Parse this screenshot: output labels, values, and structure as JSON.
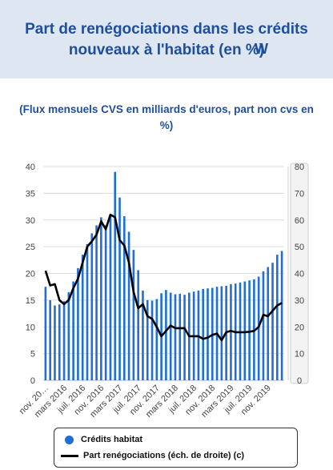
{
  "header": {
    "title": "Part de renégociations dans les crédits nouveaux à l'habitat (en %)",
    "title_mark": "W"
  },
  "chart_data": {
    "type": "bar",
    "title": "Part de renégociations dans les crédits nouveaux à l'habitat (en %)",
    "subtitle": "(Flux mensuels CVS en milliards d'euros, part non cvs en %)",
    "x_tick_labels": [
      "nov. 20…",
      "mars 2016",
      "juil. 2016",
      "nov. 2016",
      "mars 2017",
      "juil. 2017",
      "nov. 2017",
      "mars 2018",
      "juil. 2018",
      "nov. 2018",
      "mars 2019",
      "juil. 2019",
      "nov. 2019"
    ],
    "y_left": {
      "lim": [
        0,
        40
      ],
      "ticks": [
        0,
        5,
        10,
        15,
        20,
        25,
        30,
        35,
        40
      ]
    },
    "y_right": {
      "lim": [
        0,
        80
      ],
      "ticks": [
        0,
        10,
        20,
        30,
        40,
        50,
        60,
        70,
        80
      ]
    },
    "grid": true,
    "legend_position": "bottom",
    "colors": {
      "bars": "#1f6fd6",
      "line": "#000000",
      "title": "#1f4e9c",
      "header_bg": "#dde6f1"
    },
    "series": [
      {
        "name": "Crédits habitat",
        "type": "bar",
        "axis": "left",
        "values": [
          17.5,
          15.0,
          14.0,
          14.2,
          14.8,
          16.5,
          18.5,
          21.0,
          23.5,
          25.5,
          27.5,
          29.0,
          30.5,
          29.0,
          31.0,
          39.0,
          34.2,
          30.7,
          27.8,
          24.4,
          20.6,
          16.8,
          15.0,
          14.9,
          15.2,
          16.3,
          16.9,
          16.4,
          16.1,
          16.2,
          16.0,
          16.4,
          16.6,
          16.8,
          17.1,
          17.2,
          17.3,
          17.5,
          17.6,
          17.7,
          18.0,
          18.1,
          18.3,
          18.5,
          18.7,
          18.9,
          19.4,
          20.4,
          21.2,
          22.0,
          23.5,
          24.2
        ]
      },
      {
        "name": "Part renégociations (éch. de droite) (c)",
        "type": "line",
        "axis": "right",
        "values": [
          41.0,
          35.5,
          36.0,
          30.0,
          28.5,
          30.0,
          34.5,
          38.0,
          44.0,
          50.0,
          52.0,
          54.5,
          59.5,
          56.5,
          62.0,
          61.0,
          52.5,
          50.5,
          44.0,
          33.0,
          27.0,
          28.5,
          24.0,
          23.0,
          20.0,
          16.5,
          18.5,
          20.5,
          19.5,
          19.5,
          19.5,
          16.5,
          16.5,
          16.5,
          15.5,
          16.0,
          17.0,
          17.5,
          15.0,
          18.0,
          18.5,
          18.0,
          18.0,
          18.0,
          18.2,
          18.5,
          20.0,
          24.5,
          24.0,
          26.0,
          28.0,
          29.0
        ]
      }
    ]
  }
}
